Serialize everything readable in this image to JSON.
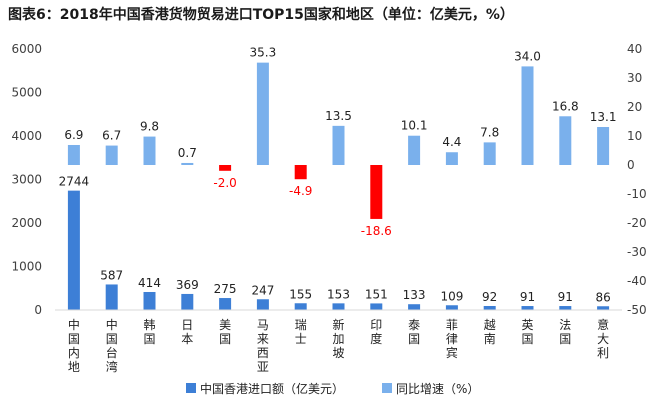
{
  "chart_data": {
    "type": "bar",
    "title": "图表6：2018年中国香港货物贸易进口TOP15国家和地区（单位：亿美元，%）",
    "categories": [
      "中国内地",
      "中国台湾",
      "韩国",
      "日本",
      "美国",
      "马来西亚",
      "瑞士",
      "新加坡",
      "印度",
      "泰国",
      "菲律宾",
      "越南",
      "英国",
      "法国",
      "意大利"
    ],
    "series": [
      {
        "name": "中国香港进口额（亿美元）",
        "axis": "left",
        "color": "#3d7fd6",
        "values": [
          2744,
          587,
          414,
          369,
          275,
          247,
          155,
          153,
          151,
          133,
          109,
          92,
          91,
          91,
          86
        ]
      },
      {
        "name": "同比增速（%）",
        "axis": "right",
        "color": "#7ab0ec",
        "negative_color": "#ff0000",
        "values": [
          6.9,
          6.7,
          9.8,
          0.7,
          -2.0,
          35.3,
          -4.9,
          13.5,
          -18.6,
          10.1,
          4.4,
          7.8,
          34.0,
          16.8,
          13.1
        ],
        "labels": [
          "6.9",
          "6.7",
          "9.8",
          "0.7",
          "-2.0",
          "35.3",
          "-4.9",
          "13.5",
          "-18.6",
          "10.1",
          "4.4",
          "7.8",
          "34.0",
          "16.8",
          "13.1"
        ]
      }
    ],
    "y_left": {
      "min": 0,
      "max": 6000,
      "ticks": [
        0,
        1000,
        2000,
        3000,
        4000,
        5000,
        6000
      ]
    },
    "y_right": {
      "min": -50,
      "max": 40,
      "ticks": [
        40,
        30,
        20,
        10,
        0,
        -10,
        -20,
        -30,
        -40,
        -50
      ]
    },
    "legend_position": "bottom",
    "grid": false
  }
}
